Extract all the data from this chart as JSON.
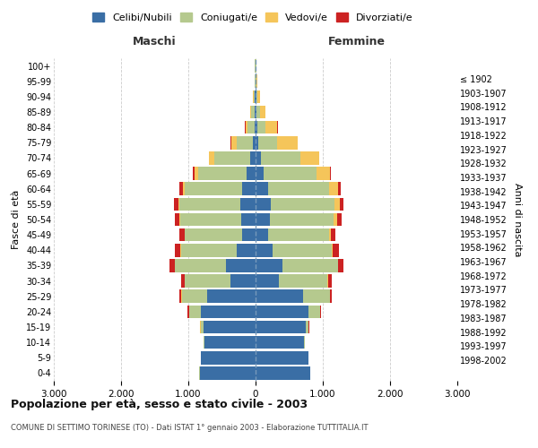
{
  "age_groups": [
    "0-4",
    "5-9",
    "10-14",
    "15-19",
    "20-24",
    "25-29",
    "30-34",
    "35-39",
    "40-44",
    "45-49",
    "50-54",
    "55-59",
    "60-64",
    "65-69",
    "70-74",
    "75-79",
    "80-84",
    "85-89",
    "90-94",
    "95-99",
    "100+"
  ],
  "birth_years": [
    "1998-2002",
    "1993-1997",
    "1988-1992",
    "1983-1987",
    "1978-1982",
    "1973-1977",
    "1968-1972",
    "1963-1967",
    "1958-1962",
    "1953-1957",
    "1948-1952",
    "1943-1947",
    "1938-1942",
    "1933-1937",
    "1928-1932",
    "1923-1927",
    "1918-1922",
    "1913-1917",
    "1908-1912",
    "1903-1907",
    "≤ 1902"
  ],
  "maschi": {
    "celibi": [
      830,
      810,
      760,
      780,
      820,
      720,
      380,
      440,
      280,
      200,
      220,
      230,
      200,
      130,
      80,
      35,
      20,
      15,
      10,
      5,
      5
    ],
    "coniugati": [
      5,
      5,
      10,
      40,
      170,
      380,
      670,
      760,
      830,
      850,
      900,
      900,
      850,
      720,
      530,
      250,
      100,
      50,
      20,
      5,
      5
    ],
    "vedovi": [
      1,
      1,
      1,
      2,
      2,
      5,
      5,
      5,
      5,
      10,
      15,
      20,
      35,
      60,
      80,
      80,
      30,
      10,
      5,
      2,
      1
    ],
    "divorziati": [
      1,
      1,
      2,
      5,
      15,
      30,
      50,
      70,
      80,
      70,
      70,
      60,
      50,
      30,
      10,
      10,
      5,
      3,
      2,
      1,
      1
    ]
  },
  "femmine": {
    "nubili": [
      810,
      780,
      720,
      740,
      780,
      700,
      350,
      400,
      250,
      190,
      210,
      220,
      190,
      120,
      80,
      40,
      25,
      15,
      10,
      5,
      5
    ],
    "coniugate": [
      5,
      5,
      10,
      50,
      180,
      400,
      720,
      820,
      880,
      900,
      950,
      950,
      900,
      780,
      580,
      280,
      120,
      50,
      20,
      5,
      5
    ],
    "vedove": [
      1,
      1,
      1,
      2,
      3,
      5,
      8,
      10,
      15,
      30,
      50,
      80,
      130,
      200,
      280,
      300,
      180,
      80,
      40,
      10,
      2
    ],
    "divorziate": [
      1,
      1,
      2,
      5,
      15,
      30,
      50,
      80,
      90,
      70,
      70,
      60,
      50,
      25,
      10,
      8,
      5,
      3,
      2,
      1,
      1
    ]
  },
  "colors": {
    "celibi": "#3a6ea5",
    "coniugati": "#b5c98e",
    "vedovi": "#f5c55a",
    "divorziati": "#cc2222"
  },
  "xlim": 3000,
  "xticks": [
    -3000,
    -2000,
    -1000,
    0,
    1000,
    2000,
    3000
  ],
  "xticklabels": [
    "3.000",
    "2.000",
    "1.000",
    "0",
    "1.000",
    "2.000",
    "3.000"
  ],
  "title": "Popolazione per età, sesso e stato civile - 2003",
  "subtitle": "COMUNE DI SETTIMO TORINESE (TO) - Dati ISTAT 1° gennaio 2003 - Elaborazione TUTTITALIA.IT",
  "ylabel_left": "Fasce di età",
  "ylabel_right": "Anni di nascita",
  "label_maschi": "Maschi",
  "label_femmine": "Femmine",
  "legend_labels": [
    "Celibi/Nubili",
    "Coniugati/e",
    "Vedovi/e",
    "Divorziati/e"
  ],
  "bg_color": "#ffffff",
  "grid_color": "#cccccc"
}
